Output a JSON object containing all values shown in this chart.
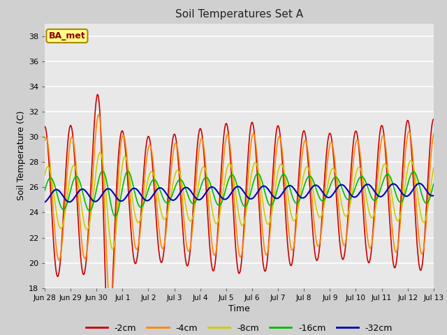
{
  "title": "Soil Temperatures Set A",
  "xlabel": "Time",
  "ylabel": "Soil Temperature (C)",
  "ylim": [
    18,
    39
  ],
  "yticks": [
    18,
    20,
    22,
    24,
    26,
    28,
    30,
    32,
    34,
    36,
    38
  ],
  "label_annotation": "BA_met",
  "fig_bg_color": "#d0d0d0",
  "plot_bg_color": "#e8e8e8",
  "series": {
    "-2cm": {
      "color": "#cc0000",
      "lw": 1.2
    },
    "-4cm": {
      "color": "#ff8800",
      "lw": 1.2
    },
    "-8cm": {
      "color": "#cccc00",
      "lw": 1.2
    },
    "-16cm": {
      "color": "#00bb00",
      "lw": 1.2
    },
    "-32cm": {
      "color": "#0000bb",
      "lw": 1.5
    }
  },
  "legend_order": [
    "-2cm",
    "-4cm",
    "-8cm",
    "-16cm",
    "-32cm"
  ],
  "xticklabels": [
    "Jun 28",
    "Jun 29",
    "Jun 30",
    "Jul 1",
    "Jul 2",
    "Jul 3",
    "Jul 4",
    "Jul 5",
    "Jul 6",
    "Jul 7",
    "Jul 8",
    "Jul 9",
    "Jul 10",
    "Jul 11",
    "Jul 12",
    "Jul 13"
  ],
  "xtick_positions": [
    0,
    1,
    2,
    3,
    4,
    5,
    6,
    7,
    8,
    9,
    10,
    11,
    12,
    13,
    14,
    15
  ]
}
